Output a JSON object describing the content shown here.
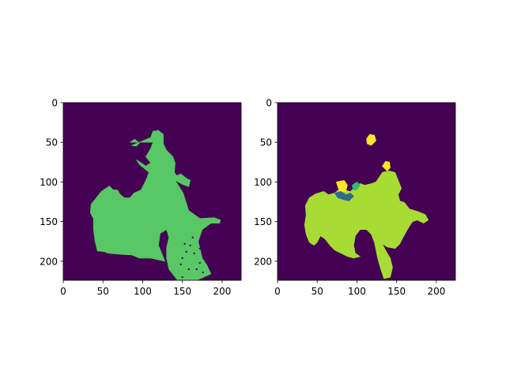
{
  "figure": {
    "background": "#ffffff",
    "panel_count": 2
  },
  "chart_data": [
    {
      "type": "heatmap",
      "title": "",
      "xlabel": "",
      "ylabel": "",
      "image_size": [
        224,
        224
      ],
      "xlim": [
        0,
        224
      ],
      "ylim": [
        224,
        0
      ],
      "x_ticks": [
        0,
        50,
        100,
        150,
        200
      ],
      "y_ticks": [
        0,
        50,
        100,
        150,
        200
      ],
      "x_tick_labels": [
        "0",
        "50",
        "100",
        "150",
        "200"
      ],
      "y_tick_labels": [
        "0",
        "50",
        "100",
        "150",
        "200"
      ],
      "colormap": "viridis",
      "background_color": "#440154",
      "regions": [
        {
          "class": "person-and-motorbike",
          "color": "#58c765",
          "polygon": [
            [
              84,
              50
            ],
            [
              90,
              46
            ],
            [
              96,
              51
            ],
            [
              92,
              55
            ],
            [
              86,
              54
            ],
            [
              110,
              44
            ],
            [
              113,
              36
            ],
            [
              120,
              35
            ],
            [
              126,
              40
            ],
            [
              126,
              52
            ],
            [
              130,
              60
            ],
            [
              138,
              68
            ],
            [
              141,
              76
            ],
            [
              140,
              88
            ],
            [
              143,
              92
            ],
            [
              148,
              90
            ],
            [
              156,
              96
            ],
            [
              160,
              98
            ],
            [
              158,
              106
            ],
            [
              150,
              103
            ],
            [
              141,
              98
            ],
            [
              151,
              114
            ],
            [
              158,
              136
            ],
            [
              172,
              146
            ],
            [
              190,
              145
            ],
            [
              198,
              148
            ],
            [
              197,
              152
            ],
            [
              186,
              152
            ],
            [
              175,
              160
            ],
            [
              170,
              175
            ],
            [
              175,
              196
            ],
            [
              181,
              205
            ],
            [
              186,
              216
            ],
            [
              168,
              224
            ],
            [
              144,
              224
            ],
            [
              133,
              210
            ],
            [
              130,
              196
            ],
            [
              130,
              183
            ],
            [
              133,
              170
            ],
            [
              130,
              160
            ],
            [
              122,
              165
            ],
            [
              120,
              180
            ],
            [
              126,
              195
            ],
            [
              128,
              200
            ],
            [
              110,
              196
            ],
            [
              96,
              196
            ],
            [
              86,
              192
            ],
            [
              70,
              191
            ],
            [
              57,
              190
            ],
            [
              52,
              188
            ],
            [
              43,
              187
            ],
            [
              40,
              175
            ],
            [
              38,
              160
            ],
            [
              38,
              146
            ],
            [
              34,
              139
            ],
            [
              35,
              128
            ],
            [
              40,
              122
            ],
            [
              48,
              112
            ],
            [
              58,
              105
            ],
            [
              63,
              110
            ],
            [
              68,
              110
            ],
            [
              72,
              116
            ],
            [
              77,
              120
            ],
            [
              84,
              120
            ],
            [
              89,
              114
            ],
            [
              98,
              110
            ],
            [
              104,
              98
            ],
            [
              108,
              88
            ],
            [
              96,
              78
            ],
            [
              92,
              72
            ],
            [
              98,
              76
            ],
            [
              104,
              80
            ],
            [
              110,
              76
            ],
            [
              104,
              68
            ],
            [
              110,
              58
            ],
            [
              113,
              50
            ]
          ]
        },
        {
          "class": "wheel-spoke-speckle",
          "color": "#440154",
          "points": [
            [
              160,
              180
            ],
            [
              165,
              190
            ],
            [
              150,
              196
            ],
            [
              172,
              202
            ],
            [
              155,
              188
            ],
            [
              178,
              190
            ],
            [
              168,
              210
            ],
            [
              158,
              210
            ],
            [
              148,
              204
            ],
            [
              163,
              170
            ],
            [
              178,
              176
            ],
            [
              172,
              184
            ],
            [
              153,
              178
            ],
            [
              150,
              220
            ],
            [
              176,
              214
            ]
          ]
        }
      ]
    },
    {
      "type": "heatmap",
      "title": "",
      "xlabel": "",
      "ylabel": "",
      "image_size": [
        224,
        224
      ],
      "xlim": [
        0,
        224
      ],
      "ylim": [
        224,
        0
      ],
      "x_ticks": [
        0,
        50,
        100,
        150,
        200
      ],
      "y_ticks": [
        0,
        50,
        100,
        150,
        200
      ],
      "x_tick_labels": [
        "0",
        "50",
        "100",
        "150",
        "200"
      ],
      "y_tick_labels": [
        "0",
        "50",
        "100",
        "150",
        "200"
      ],
      "colormap": "viridis",
      "background_color": "#440154",
      "regions": [
        {
          "class": "predicted-motorbike",
          "color": "#a8db34",
          "polygon": [
            [
              35,
              130
            ],
            [
              40,
              120
            ],
            [
              48,
              115
            ],
            [
              58,
              112
            ],
            [
              64,
              116
            ],
            [
              72,
              114
            ],
            [
              78,
              109
            ],
            [
              84,
              110
            ],
            [
              92,
              112
            ],
            [
              98,
              106
            ],
            [
              104,
              102
            ],
            [
              110,
              104
            ],
            [
              118,
              102
            ],
            [
              124,
              100
            ],
            [
              128,
              94
            ],
            [
              132,
              88
            ],
            [
              140,
              86
            ],
            [
              148,
              88
            ],
            [
              152,
              98
            ],
            [
              156,
              108
            ],
            [
              152,
              116
            ],
            [
              154,
              124
            ],
            [
              160,
              126
            ],
            [
              166,
              134
            ],
            [
              176,
              137
            ],
            [
              186,
              141
            ],
            [
              190,
              148
            ],
            [
              184,
              152
            ],
            [
              176,
              148
            ],
            [
              170,
              150
            ],
            [
              166,
              156
            ],
            [
              162,
              163
            ],
            [
              158,
              170
            ],
            [
              154,
              178
            ],
            [
              148,
              184
            ],
            [
              138,
              182
            ],
            [
              132,
              178
            ],
            [
              136,
              186
            ],
            [
              142,
              196
            ],
            [
              145,
              208
            ],
            [
              142,
              220
            ],
            [
              134,
              222
            ],
            [
              130,
              210
            ],
            [
              126,
              196
            ],
            [
              124,
              186
            ],
            [
              122,
              176
            ],
            [
              118,
              166
            ],
            [
              112,
              160
            ],
            [
              104,
              160
            ],
            [
              98,
              168
            ],
            [
              96,
              180
            ],
            [
              98,
              190
            ],
            [
              104,
              194
            ],
            [
              96,
              196
            ],
            [
              88,
              194
            ],
            [
              80,
              190
            ],
            [
              72,
              186
            ],
            [
              66,
              180
            ],
            [
              60,
              172
            ],
            [
              54,
              168
            ],
            [
              50,
              176
            ],
            [
              46,
              180
            ],
            [
              40,
              176
            ],
            [
              36,
              166
            ],
            [
              34,
              154
            ],
            [
              36,
              142
            ]
          ]
        },
        {
          "class": "predicted-person-head",
          "color": "#fde725",
          "polygon": [
            [
              112,
              46
            ],
            [
              116,
              40
            ],
            [
              122,
              41
            ],
            [
              124,
              48
            ],
            [
              118,
              54
            ],
            [
              113,
              52
            ]
          ]
        },
        {
          "class": "predicted-person-patch",
          "color": "#fde725",
          "polygon": [
            [
              132,
              80
            ],
            [
              136,
              74
            ],
            [
              141,
              75
            ],
            [
              142,
              82
            ],
            [
              138,
              86
            ]
          ]
        },
        {
          "class": "predicted-person-arm",
          "color": "#fde725",
          "polygon": [
            [
              74,
              100
            ],
            [
              84,
              98
            ],
            [
              88,
              104
            ],
            [
              86,
              112
            ],
            [
              78,
              112
            ]
          ]
        },
        {
          "class": "predicted-other-blue",
          "color": "#31688e",
          "polygon": [
            [
              72,
              114
            ],
            [
              80,
              112
            ],
            [
              86,
              116
            ],
            [
              92,
              114
            ],
            [
              96,
              118
            ],
            [
              90,
              124
            ],
            [
              82,
              122
            ],
            [
              76,
              120
            ]
          ]
        },
        {
          "class": "predicted-other-teal",
          "color": "#35b779",
          "polygon": [
            [
              94,
              104
            ],
            [
              100,
              100
            ],
            [
              104,
              104
            ],
            [
              100,
              110
            ],
            [
              95,
              110
            ]
          ]
        }
      ]
    }
  ]
}
